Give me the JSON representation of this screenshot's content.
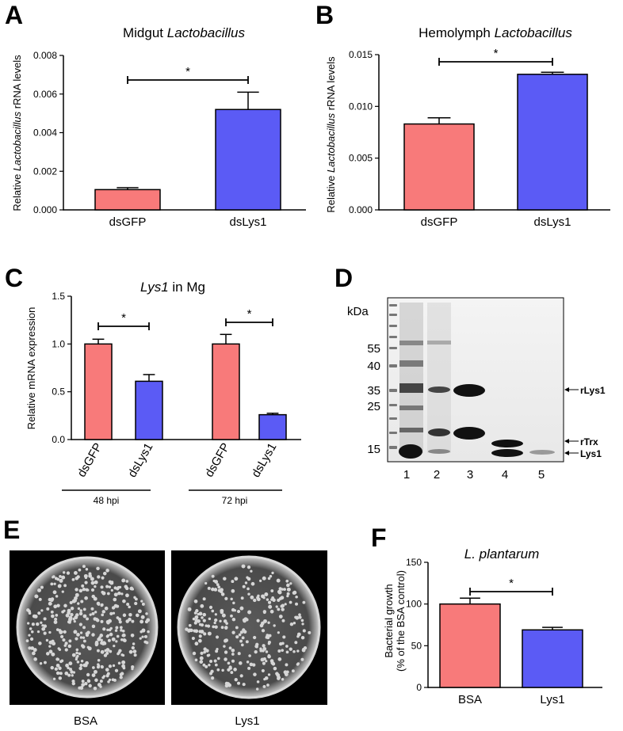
{
  "panels": {
    "A": "A",
    "B": "B",
    "C": "C",
    "D": "D",
    "E": "E",
    "F": "F"
  },
  "colors": {
    "control": "#f87a7a",
    "treatment": "#5b5bf5",
    "axis": "#000000"
  },
  "chart_data": [
    {
      "id": "A",
      "type": "bar",
      "title_main": "Midgut ",
      "title_italic": "Lactobacillus",
      "ylabel_pre": "Relative ",
      "ylabel_italic": "Lactobacillus",
      "ylabel_post": " rRNA levels",
      "categories": [
        "dsGFP",
        "dsLys1"
      ],
      "values": [
        0.00105,
        0.0052
      ],
      "errors": [
        0.0001,
        0.0009
      ],
      "ylim": [
        0,
        0.008
      ],
      "yticks": [
        "0.000",
        "0.002",
        "0.004",
        "0.006",
        "0.008"
      ],
      "ytick_values": [
        0,
        0.002,
        0.004,
        0.006,
        0.008
      ],
      "significance": "*"
    },
    {
      "id": "B",
      "type": "bar",
      "title_main": "Hemolymph ",
      "title_italic": "Lactobacillus",
      "ylabel_pre": "Relative ",
      "ylabel_italic": "Lactobacillus",
      "ylabel_post": " rRNA levels",
      "categories": [
        "dsGFP",
        "dsLys1"
      ],
      "values": [
        0.0083,
        0.0131
      ],
      "errors": [
        0.0006,
        0.0002
      ],
      "ylim": [
        0,
        0.015
      ],
      "yticks": [
        "0.000",
        "0.005",
        "0.010",
        "0.015"
      ],
      "ytick_values": [
        0,
        0.005,
        0.01,
        0.015
      ],
      "significance": "*"
    },
    {
      "id": "C",
      "type": "bar",
      "title_italic": "Lys1",
      "title_main": " in Mg",
      "ylabel": "Relative mRNA expression",
      "categories": [
        "dsGFP",
        "dsLys1",
        "dsGFP",
        "dsLys1"
      ],
      "groups": [
        "48 hpi",
        "72 hpi"
      ],
      "values": [
        1.0,
        0.61,
        1.0,
        0.26
      ],
      "errors": [
        0.05,
        0.07,
        0.1,
        0.015
      ],
      "ylim": [
        0,
        1.5
      ],
      "yticks": [
        "0.0",
        "0.5",
        "1.0",
        "1.5"
      ],
      "ytick_values": [
        0,
        0.5,
        1.0,
        1.5
      ],
      "significance": [
        "*",
        "*"
      ]
    },
    {
      "id": "F",
      "type": "bar",
      "title_italic": "L. plantarum",
      "ylabel_line1": "Bacterial growth",
      "ylabel_line2": "(% of the BSA control)",
      "categories": [
        "BSA",
        "Lys1"
      ],
      "values": [
        100,
        69
      ],
      "errors": [
        7,
        3
      ],
      "ylim": [
        0,
        150
      ],
      "yticks": [
        "0",
        "50",
        "100",
        "150"
      ],
      "ytick_values": [
        0,
        50,
        100,
        150
      ],
      "significance": "*"
    }
  ],
  "gel": {
    "unit": "kDa",
    "markers": [
      "55",
      "40",
      "35",
      "25",
      "15"
    ],
    "lanes": [
      "1",
      "2",
      "3",
      "4",
      "5"
    ],
    "band_labels": [
      "rLys1",
      "rTrx",
      "Lys1"
    ]
  },
  "plates": {
    "labels": [
      "BSA",
      "Lys1"
    ]
  }
}
